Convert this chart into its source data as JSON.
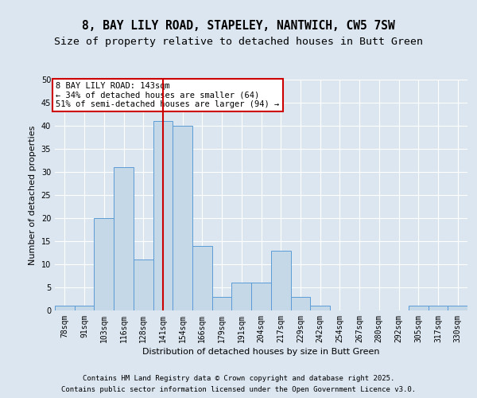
{
  "title_line1": "8, BAY LILY ROAD, STAPELEY, NANTWICH, CW5 7SW",
  "title_line2": "Size of property relative to detached houses in Butt Green",
  "xlabel": "Distribution of detached houses by size in Butt Green",
  "ylabel": "Number of detached properties",
  "categories": [
    "78sqm",
    "91sqm",
    "103sqm",
    "116sqm",
    "128sqm",
    "141sqm",
    "154sqm",
    "166sqm",
    "179sqm",
    "191sqm",
    "204sqm",
    "217sqm",
    "229sqm",
    "242sqm",
    "254sqm",
    "267sqm",
    "280sqm",
    "292sqm",
    "305sqm",
    "317sqm",
    "330sqm"
  ],
  "values": [
    1,
    1,
    20,
    31,
    11,
    41,
    40,
    14,
    3,
    6,
    6,
    13,
    3,
    1,
    0,
    0,
    0,
    0,
    1,
    1,
    1
  ],
  "bar_color": "#c5d8e8",
  "bar_edge_color": "#5b9bd5",
  "highlight_color": "#cc0000",
  "annotation_text": "8 BAY LILY ROAD: 143sqm\n← 34% of detached houses are smaller (64)\n51% of semi-detached houses are larger (94) →",
  "annotation_box_color": "#ffffff",
  "annotation_box_edge": "#cc0000",
  "ylim": [
    0,
    50
  ],
  "yticks": [
    0,
    5,
    10,
    15,
    20,
    25,
    30,
    35,
    40,
    45,
    50
  ],
  "bg_color": "#dce6f0",
  "plot_bg_color": "#dce6f0",
  "grid_color": "#ffffff",
  "footer_line1": "Contains HM Land Registry data © Crown copyright and database right 2025.",
  "footer_line2": "Contains public sector information licensed under the Open Government Licence v3.0.",
  "title_fontsize": 10.5,
  "subtitle_fontsize": 9.5,
  "axis_label_fontsize": 8,
  "tick_fontsize": 7,
  "annotation_fontsize": 7.5,
  "footer_fontsize": 6.5
}
